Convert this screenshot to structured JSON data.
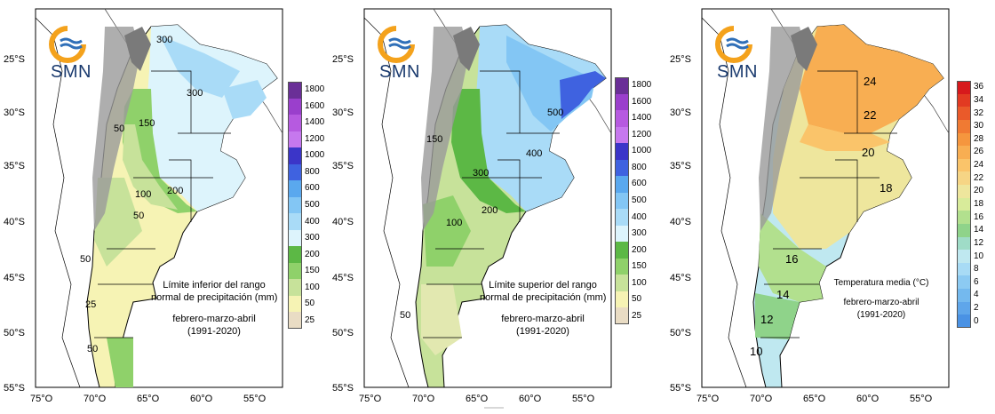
{
  "logo": {
    "text": "SMN"
  },
  "lat_ticks": [
    "25°S",
    "30°S",
    "35°S",
    "40°S",
    "45°S",
    "50°S",
    "55°S"
  ],
  "lon_ticks": [
    "75°O",
    "70°O",
    "65°O",
    "60°O",
    "55°O"
  ],
  "panels": [
    {
      "id": "lower",
      "caption_line1": "Límite inferior del rango",
      "caption_line2": "normal de precipitación (mm)",
      "period": "febrero-marzo-abril",
      "years": "(1991-2020)",
      "contour_labels": [
        "300",
        "300",
        "50",
        "150",
        "100",
        "50",
        "200",
        "50",
        "25",
        "50"
      ],
      "colorbar": {
        "labels": [
          "1800",
          "1600",
          "1400",
          "1200",
          "1000",
          "800",
          "600",
          "500",
          "400",
          "300",
          "200",
          "150",
          "100",
          "50",
          "25"
        ],
        "colors": [
          "#6a2f97",
          "#9a3fcc",
          "#b65ae0",
          "#c678ee",
          "#3b35c8",
          "#3f62e0",
          "#5aa8ee",
          "#83c6f4",
          "#a9dbf7",
          "#ddf4fc",
          "#5cb845",
          "#8fd16a",
          "#c7e29a",
          "#f6f3b4",
          "#e9dcc4"
        ]
      }
    },
    {
      "id": "upper",
      "caption_line1": "Límite superior del rango",
      "caption_line2": "normal de precipitación (mm)",
      "period": "febrero-marzo-abril",
      "years": "(1991-2020)",
      "contour_labels": [
        "500",
        "150",
        "300",
        "400",
        "200",
        "100",
        "50"
      ],
      "colorbar": {
        "labels": [
          "1800",
          "1600",
          "1400",
          "1200",
          "1000",
          "800",
          "600",
          "500",
          "400",
          "300",
          "200",
          "150",
          "100",
          "50",
          "25"
        ],
        "colors": [
          "#6a2f97",
          "#9a3fcc",
          "#b65ae0",
          "#c678ee",
          "#3b35c8",
          "#3f62e0",
          "#5aa8ee",
          "#83c6f4",
          "#a9dbf7",
          "#ddf4fc",
          "#5cb845",
          "#8fd16a",
          "#c7e29a",
          "#f6f3b4",
          "#e9dcc4"
        ]
      }
    },
    {
      "id": "temp",
      "caption_line1": "Temperatura media (°C)",
      "period": "febrero-marzo-abril",
      "years": "(1991-2020)",
      "contour_labels": [
        "24",
        "22",
        "20",
        "18",
        "16",
        "14",
        "12",
        "10"
      ],
      "colorbar": {
        "labels": [
          "36",
          "34",
          "32",
          "30",
          "28",
          "26",
          "24",
          "22",
          "20",
          "18",
          "16",
          "14",
          "12",
          "10",
          "8",
          "6",
          "4",
          "2",
          "0"
        ],
        "colors": [
          "#d7191c",
          "#e23a22",
          "#ea5a2a",
          "#f07a33",
          "#f5963e",
          "#f8ae52",
          "#fac46a",
          "#f6d585",
          "#eee69d",
          "#d8eb9a",
          "#b2e08e",
          "#8fd38a",
          "#9fdcc7",
          "#bfe8f0",
          "#a8dbf5",
          "#8ccaf2",
          "#74b9ee",
          "#5fa6ea",
          "#4a92e4"
        ]
      }
    }
  ]
}
